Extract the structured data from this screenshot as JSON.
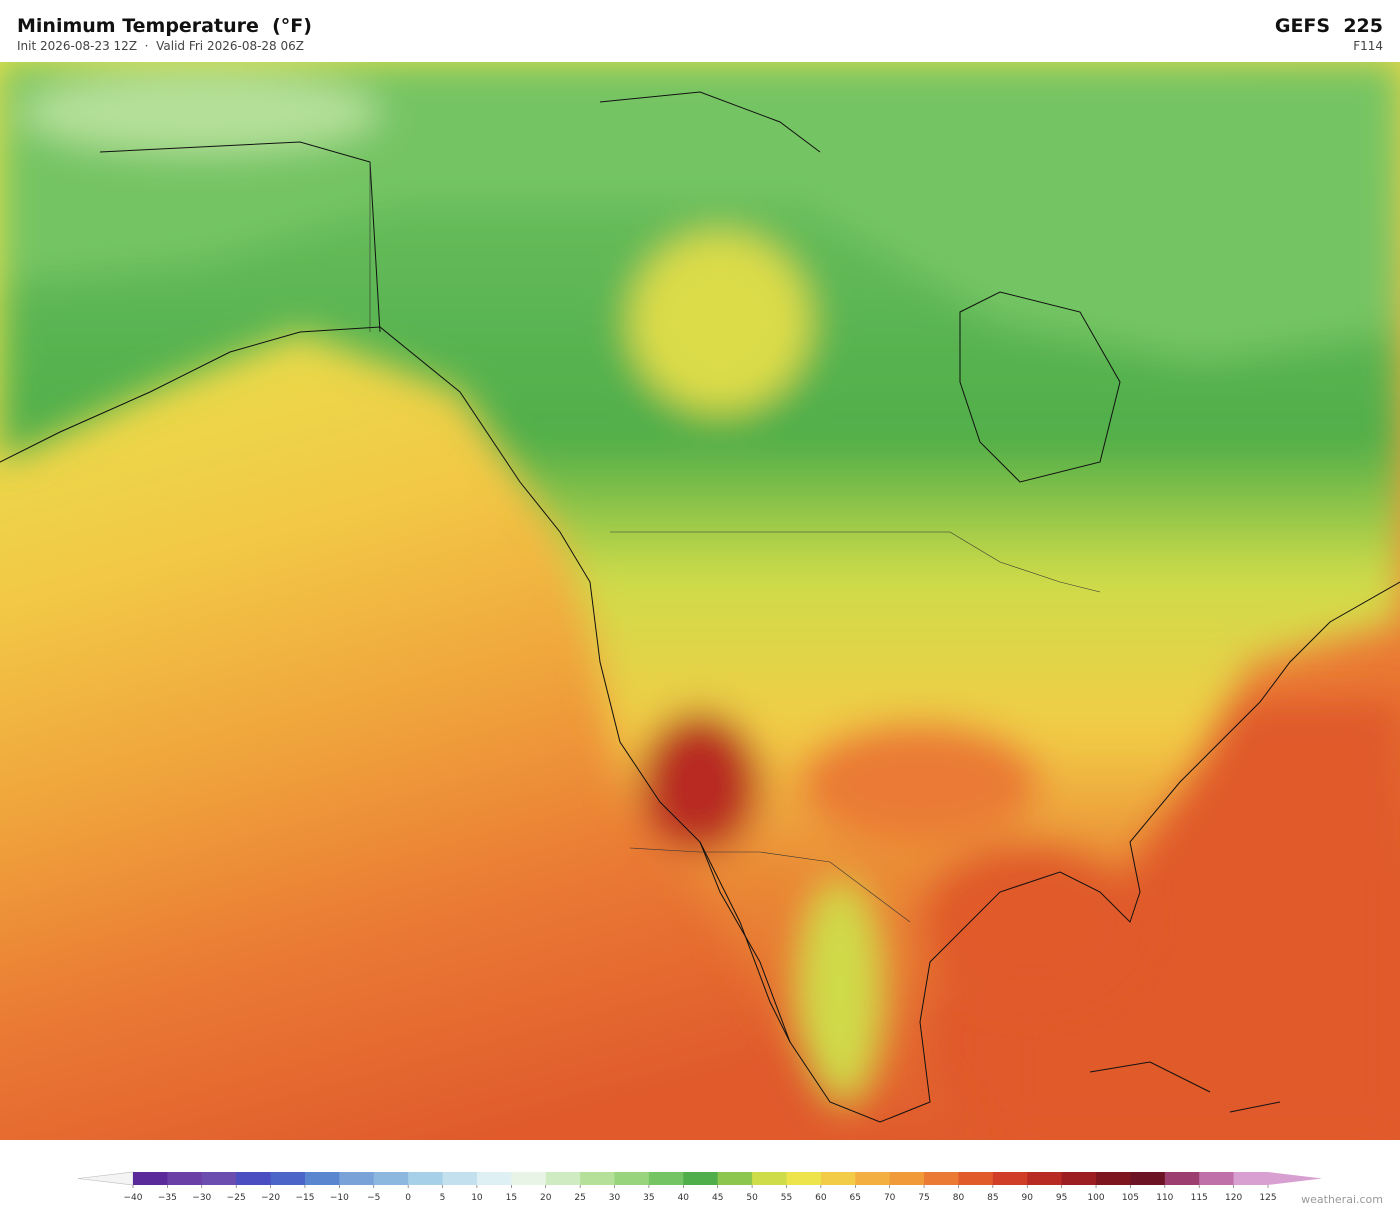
{
  "header": {
    "title": "Minimum Temperature  (°F)",
    "subtitle": "Init 2026-08-23 12Z  ·  Valid Fri 2026-08-28 06Z",
    "model": "GEFS  225",
    "forecast_hour": "F114"
  },
  "colorbar": {
    "ticks": [
      {
        "value": -40,
        "label": "−40"
      },
      {
        "value": -35,
        "label": "−35"
      },
      {
        "value": -30,
        "label": "−30"
      },
      {
        "value": -25,
        "label": "−25"
      },
      {
        "value": -20,
        "label": "−20"
      },
      {
        "value": -15,
        "label": "−15"
      },
      {
        "value": -10,
        "label": "−10"
      },
      {
        "value": -5,
        "label": "−5"
      },
      0,
      5,
      10,
      15,
      20,
      25,
      30,
      35,
      40,
      45,
      50,
      55,
      60,
      65,
      70,
      75,
      80,
      85,
      90,
      95,
      100,
      105,
      110,
      115,
      120,
      125
    ],
    "colors": [
      "#5b2a9a",
      "#6a3fa6",
      "#6b4db0",
      "#4a4ec0",
      "#4a64c8",
      "#5a86d0",
      "#79a2d8",
      "#8cb8e0",
      "#a6cfe8",
      "#c2e0ee",
      "#dff0f4",
      "#e8f4e6",
      "#cfebc2",
      "#b5e09a",
      "#98d47c",
      "#74c464",
      "#4fae4a",
      "#8cc64e",
      "#cfdc4a",
      "#ece44a",
      "#f2cc46",
      "#f3b040",
      "#f09a3a",
      "#ea7a34",
      "#e05a2c",
      "#d03e28",
      "#b82a24",
      "#9c1e22",
      "#7e1620",
      "#6c1426",
      "#9c3e70",
      "#c070a8",
      "#d8a0d0"
    ],
    "under_color": "#f4f4f4",
    "over_color": "#d8a0d0"
  },
  "credit": "weatherai.com"
}
